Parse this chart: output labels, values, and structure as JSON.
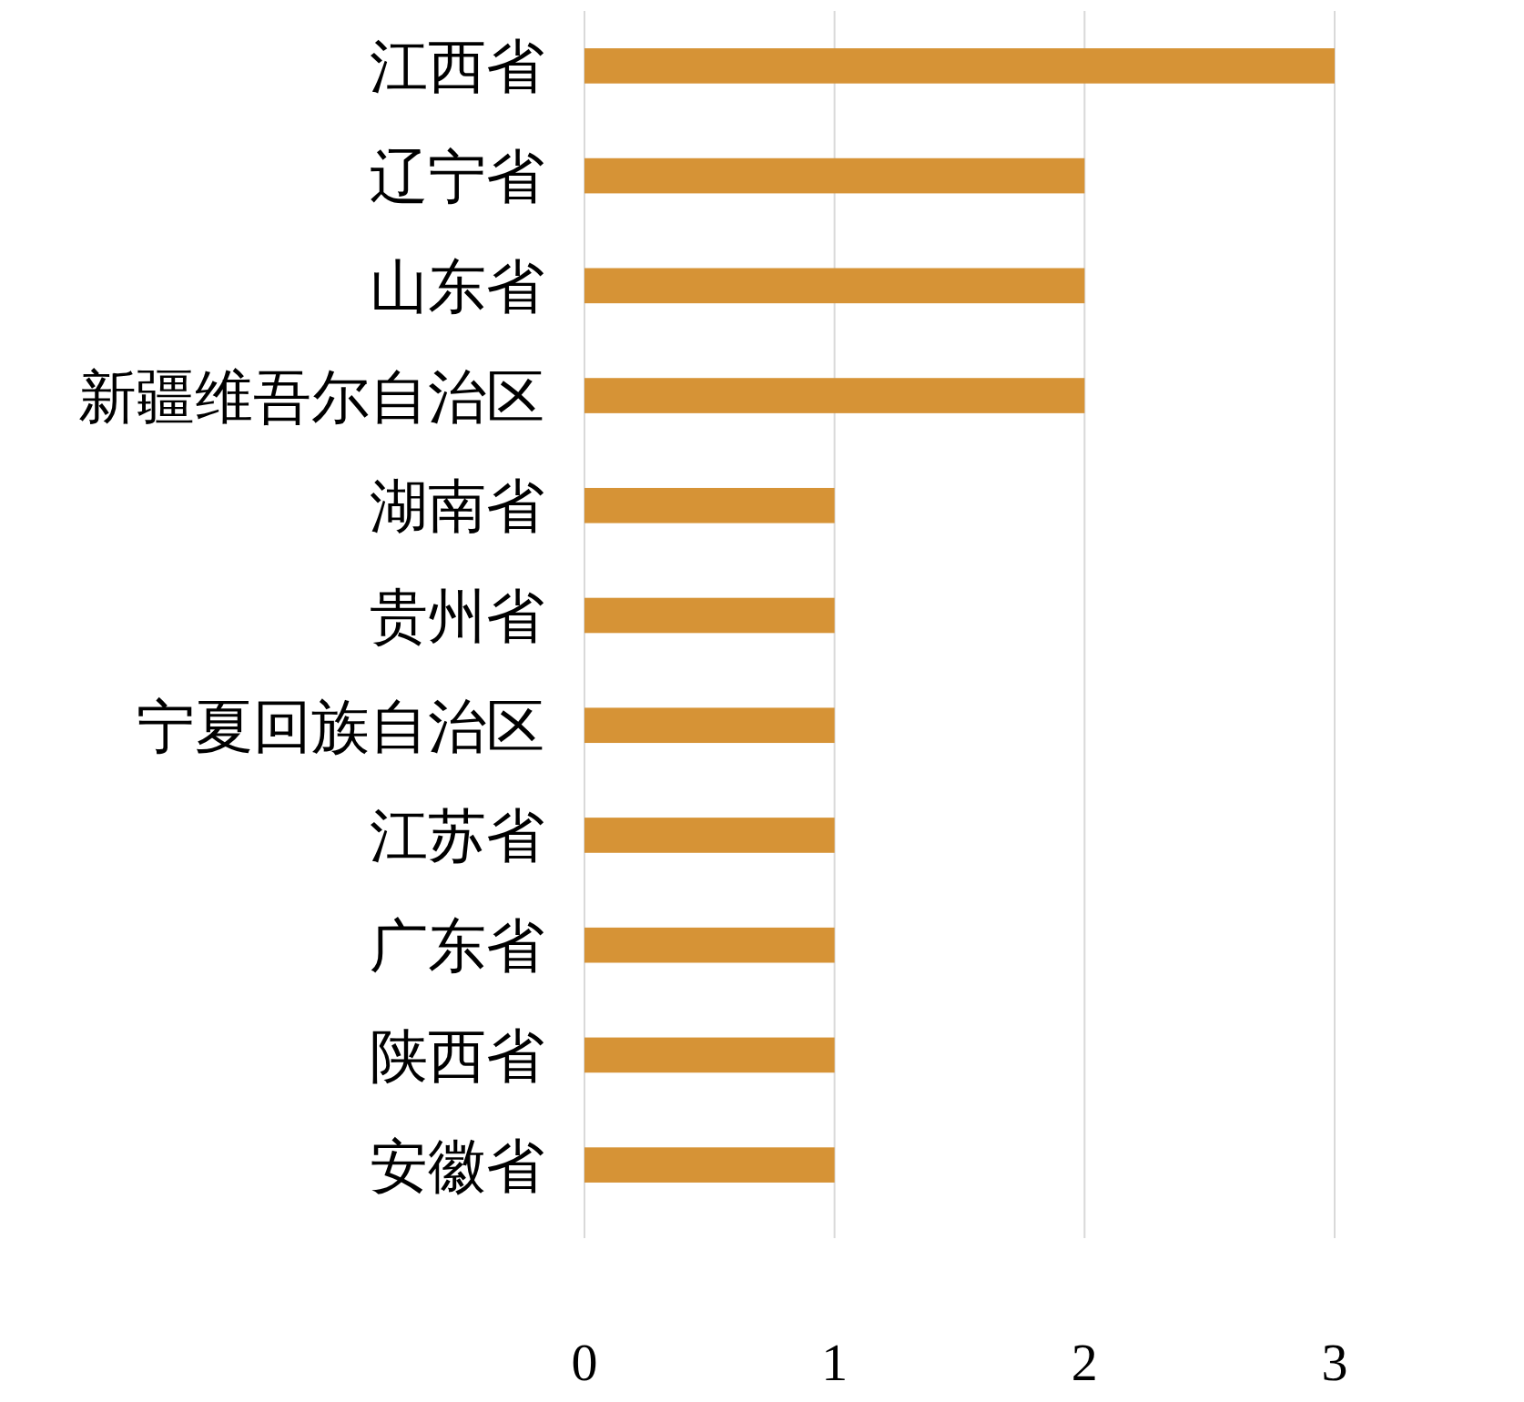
{
  "chart_data": {
    "type": "bar",
    "orientation": "horizontal",
    "categories": [
      "江西省",
      "辽宁省",
      "山东省",
      "新疆维吾尔自治区",
      "湖南省",
      "贵州省",
      "宁夏回族自治区",
      "江苏省",
      "广东省",
      "陕西省",
      "安徽省"
    ],
    "values": [
      3,
      2,
      2,
      2,
      1,
      1,
      1,
      1,
      1,
      1,
      1
    ],
    "color": "#d69336",
    "xlim": [
      0,
      3
    ],
    "xticks": [
      0,
      1,
      2,
      3
    ],
    "grid": "x"
  }
}
